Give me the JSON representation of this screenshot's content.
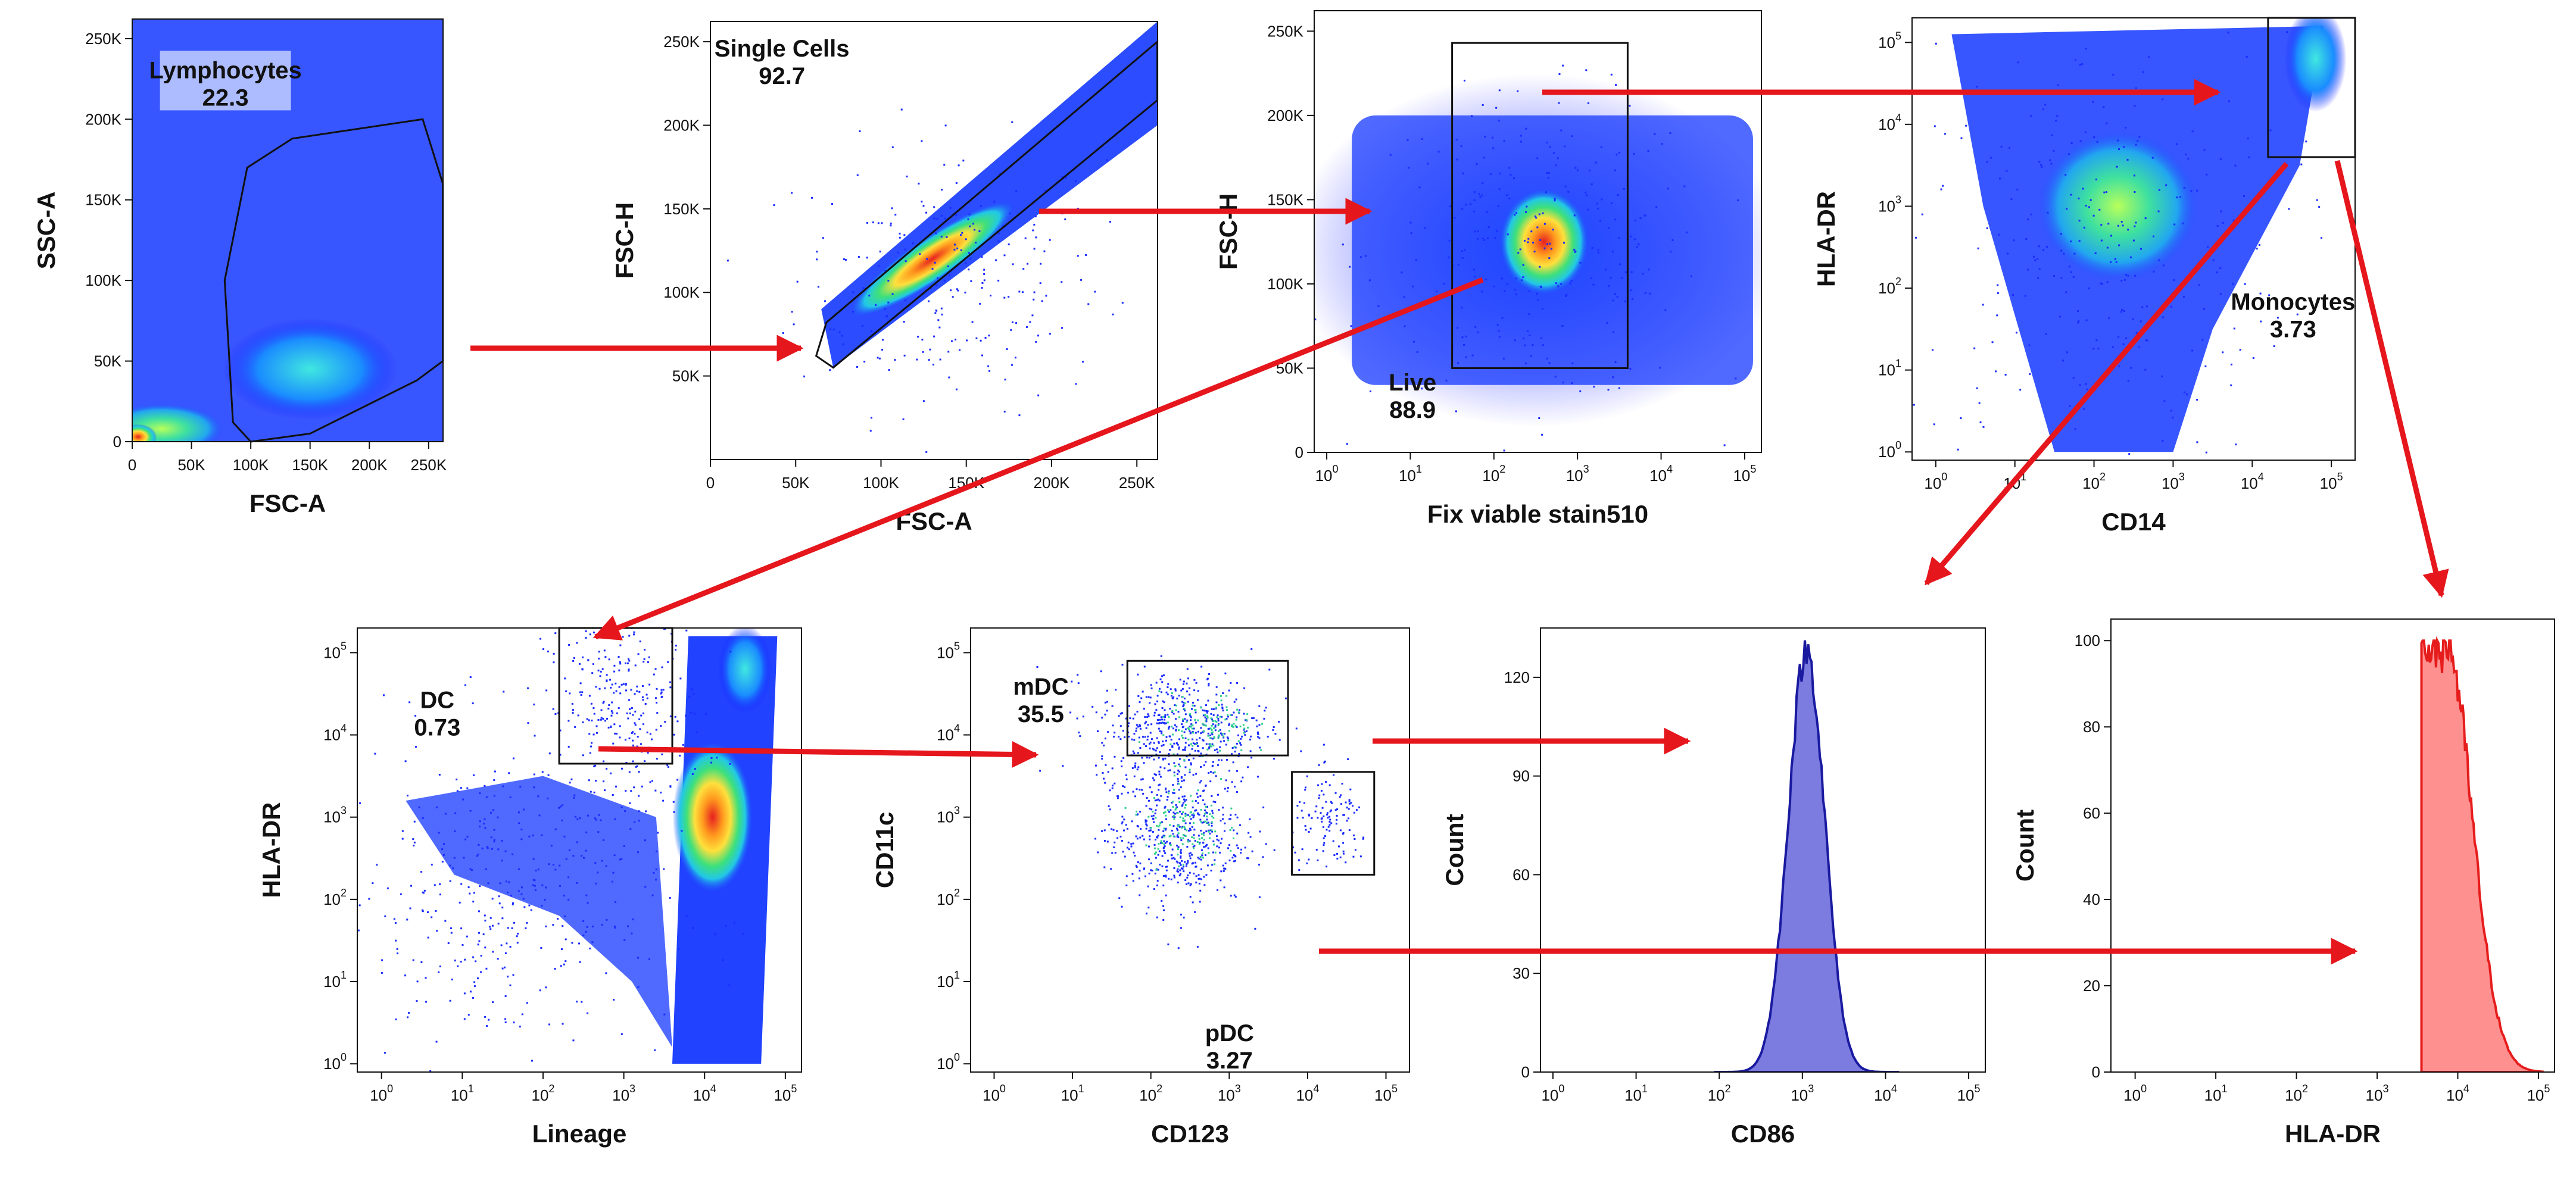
{
  "figure_title": "",
  "colors": {
    "arrow": "#e5161c",
    "frame": "#111111",
    "density_low": "#1414ff",
    "density_mid": "#22c8e6",
    "density_high": "#ffd23c",
    "density_peak": "#e62020",
    "cd86_fill": "#7b7be0",
    "cd86_line": "#1a1aa0",
    "hladr_fill": "#ff9090",
    "hladr_line": "#e61c1c"
  },
  "chart_data": [
    {
      "id": "p1",
      "type": "scatter",
      "title": "",
      "xlabel": "FSC-A",
      "ylabel": "SSC-A",
      "scale": "linear",
      "xlim": [
        0,
        262144
      ],
      "ylim": [
        0,
        262144
      ],
      "xticks": [
        {
          "v": 0,
          "t": "0"
        },
        {
          "v": 50000,
          "t": "50K"
        },
        {
          "v": 100000,
          "t": "100K"
        },
        {
          "v": 150000,
          "t": "150K"
        },
        {
          "v": 200000,
          "t": "200K"
        },
        {
          "v": 250000,
          "t": "250K"
        }
      ],
      "yticks": [
        {
          "v": 0,
          "t": "0"
        },
        {
          "v": 50000,
          "t": "50K"
        },
        {
          "v": 100000,
          "t": "100K"
        },
        {
          "v": 150000,
          "t": "150K"
        },
        {
          "v": 200000,
          "t": "200K"
        },
        {
          "v": 250000,
          "t": "250K"
        }
      ],
      "gates": [
        {
          "name": "Lymphocytes",
          "value": "22.3",
          "shape": "polygon",
          "points": [
            [
              85000,
              12000
            ],
            [
              78000,
              100000
            ],
            [
              97000,
              170000
            ],
            [
              135000,
              188000
            ],
            [
              245000,
              200000
            ],
            [
              262000,
              160000
            ],
            [
              262000,
              50000
            ],
            [
              240000,
              38000
            ],
            [
              150000,
              5000
            ],
            [
              100000,
              0
            ]
          ]
        }
      ]
    },
    {
      "id": "p2",
      "type": "scatter",
      "title": "",
      "xlabel": "FSC-A",
      "ylabel": "FSC-H",
      "scale": "linear",
      "xlim": [
        0,
        262144
      ],
      "ylim": [
        0,
        262144
      ],
      "xticks": [
        {
          "v": 0,
          "t": "0"
        },
        {
          "v": 50000,
          "t": "50K"
        },
        {
          "v": 100000,
          "t": "100K"
        },
        {
          "v": 150000,
          "t": "150K"
        },
        {
          "v": 200000,
          "t": "200K"
        },
        {
          "v": 250000,
          "t": "250K"
        }
      ],
      "yticks": [
        {
          "v": 50000,
          "t": "50K"
        },
        {
          "v": 100000,
          "t": "100K"
        },
        {
          "v": 150000,
          "t": "150K"
        },
        {
          "v": 200000,
          "t": "200K"
        },
        {
          "v": 250000,
          "t": "250K"
        }
      ],
      "gates": [
        {
          "name": "Single Cells",
          "value": "92.7",
          "shape": "polygon",
          "points": [
            [
              62000,
              62000
            ],
            [
              68000,
              82000
            ],
            [
              262000,
              250000
            ],
            [
              262000,
              215000
            ],
            [
              72000,
              55000
            ]
          ]
        }
      ]
    },
    {
      "id": "p3",
      "type": "scatter",
      "title": "",
      "xlabel": "Fix viable stain510",
      "ylabel": "FSC-H",
      "scale": "xlog",
      "xlim": [
        -0.15,
        5.2
      ],
      "ylim": [
        0,
        262144
      ],
      "xticks": [
        {
          "v": 0,
          "t": "10",
          "e": "0"
        },
        {
          "v": 1,
          "t": "10",
          "e": "1"
        },
        {
          "v": 2,
          "t": "10",
          "e": "2"
        },
        {
          "v": 3,
          "t": "10",
          "e": "3"
        },
        {
          "v": 4,
          "t": "10",
          "e": "4"
        },
        {
          "v": 5,
          "t": "10",
          "e": "5"
        }
      ],
      "yticks": [
        {
          "v": 0,
          "t": "0"
        },
        {
          "v": 50000,
          "t": "50K"
        },
        {
          "v": 100000,
          "t": "100K"
        },
        {
          "v": 150000,
          "t": "150K"
        },
        {
          "v": 200000,
          "t": "200K"
        },
        {
          "v": 250000,
          "t": "250K"
        }
      ],
      "gates": [
        {
          "name": "Live",
          "value": "88.9",
          "shape": "rect",
          "x": [
            1.5,
            3.6
          ],
          "y": [
            50000,
            243000
          ]
        }
      ]
    },
    {
      "id": "p4",
      "type": "scatter",
      "title": "",
      "xlabel": "CD14",
      "ylabel": "HLA-DR",
      "scale": "loglog",
      "xlim": [
        -0.3,
        5.3
      ],
      "ylim": [
        -0.1,
        5.3
      ],
      "xticks": [
        {
          "v": 0,
          "t": "10",
          "e": "0"
        },
        {
          "v": 1,
          "t": "10",
          "e": "1"
        },
        {
          "v": 2,
          "t": "10",
          "e": "2"
        },
        {
          "v": 3,
          "t": "10",
          "e": "3"
        },
        {
          "v": 4,
          "t": "10",
          "e": "4"
        },
        {
          "v": 5,
          "t": "10",
          "e": "5"
        }
      ],
      "yticks": [
        {
          "v": 0,
          "t": "10",
          "e": "0"
        },
        {
          "v": 1,
          "t": "10",
          "e": "1"
        },
        {
          "v": 2,
          "t": "10",
          "e": "2"
        },
        {
          "v": 3,
          "t": "10",
          "e": "3"
        },
        {
          "v": 4,
          "t": "10",
          "e": "4"
        },
        {
          "v": 5,
          "t": "10",
          "e": "5"
        }
      ],
      "gates": [
        {
          "name": "Monocytes",
          "value": "3.73",
          "shape": "rect",
          "x": [
            4.2,
            5.3
          ],
          "y": [
            3.6,
            5.3
          ]
        }
      ]
    },
    {
      "id": "p5",
      "type": "scatter",
      "title": "",
      "xlabel": "Lineage",
      "ylabel": "HLA-DR",
      "scale": "loglog",
      "xlim": [
        -0.3,
        5.2
      ],
      "ylim": [
        -0.1,
        5.3
      ],
      "xticks": [
        {
          "v": 0,
          "t": "10",
          "e": "0"
        },
        {
          "v": 1,
          "t": "10",
          "e": "1"
        },
        {
          "v": 2,
          "t": "10",
          "e": "2"
        },
        {
          "v": 3,
          "t": "10",
          "e": "3"
        },
        {
          "v": 4,
          "t": "10",
          "e": "4"
        },
        {
          "v": 5,
          "t": "10",
          "e": "5"
        }
      ],
      "yticks": [
        {
          "v": 0,
          "t": "10",
          "e": "0"
        },
        {
          "v": 1,
          "t": "10",
          "e": "1"
        },
        {
          "v": 2,
          "t": "10",
          "e": "2"
        },
        {
          "v": 3,
          "t": "10",
          "e": "3"
        },
        {
          "v": 4,
          "t": "10",
          "e": "4"
        },
        {
          "v": 5,
          "t": "10",
          "e": "5"
        }
      ],
      "gates": [
        {
          "name": "DC",
          "value": "0.73",
          "shape": "rect",
          "x": [
            2.2,
            3.6
          ],
          "y": [
            3.65,
            5.3
          ]
        }
      ]
    },
    {
      "id": "p6",
      "type": "scatter",
      "title": "",
      "xlabel": "CD123",
      "ylabel": "CD11c",
      "scale": "loglog",
      "xlim": [
        -0.3,
        5.3
      ],
      "ylim": [
        -0.1,
        5.3
      ],
      "xticks": [
        {
          "v": 0,
          "t": "10",
          "e": "0"
        },
        {
          "v": 1,
          "t": "10",
          "e": "1"
        },
        {
          "v": 2,
          "t": "10",
          "e": "2"
        },
        {
          "v": 3,
          "t": "10",
          "e": "3"
        },
        {
          "v": 4,
          "t": "10",
          "e": "4"
        },
        {
          "v": 5,
          "t": "10",
          "e": "5"
        }
      ],
      "yticks": [
        {
          "v": 0,
          "t": "10",
          "e": "0"
        },
        {
          "v": 1,
          "t": "10",
          "e": "1"
        },
        {
          "v": 2,
          "t": "10",
          "e": "2"
        },
        {
          "v": 3,
          "t": "10",
          "e": "3"
        },
        {
          "v": 4,
          "t": "10",
          "e": "4"
        },
        {
          "v": 5,
          "t": "10",
          "e": "5"
        }
      ],
      "gates": [
        {
          "name": "mDC",
          "value": "35.5",
          "shape": "rect",
          "x": [
            1.7,
            3.75
          ],
          "y": [
            3.75,
            4.9
          ]
        },
        {
          "name": "pDC",
          "value": "3.27",
          "shape": "rect",
          "x": [
            3.8,
            4.85
          ],
          "y": [
            2.3,
            3.55
          ]
        }
      ]
    },
    {
      "id": "p7",
      "type": "histogram",
      "title": "",
      "xlabel": "CD86",
      "ylabel": "Count",
      "scale": "xlog",
      "xlim": [
        -0.15,
        5.2
      ],
      "ylim": [
        0,
        135
      ],
      "xticks": [
        {
          "v": 0,
          "t": "10",
          "e": "0"
        },
        {
          "v": 1,
          "t": "10",
          "e": "1"
        },
        {
          "v": 2,
          "t": "10",
          "e": "2"
        },
        {
          "v": 3,
          "t": "10",
          "e": "3"
        },
        {
          "v": 4,
          "t": "10",
          "e": "4"
        },
        {
          "v": 5,
          "t": "10",
          "e": "5"
        }
      ],
      "yticks": [
        {
          "v": 0,
          "t": "0"
        },
        {
          "v": 30,
          "t": "30"
        },
        {
          "v": 60,
          "t": "60"
        },
        {
          "v": 90,
          "t": "90"
        },
        {
          "v": 120,
          "t": "120"
        }
      ],
      "peak_log10": 3.05,
      "peak_count": 128,
      "width_log10": 0.22,
      "start_log10": 1.95,
      "end_log10": 4.15
    },
    {
      "id": "p8",
      "type": "histogram",
      "title": "",
      "xlabel": "HLA-DR",
      "ylabel": "Count",
      "scale": "xlog",
      "xlim": [
        -0.3,
        5.2
      ],
      "ylim": [
        0,
        105
      ],
      "xticks": [
        {
          "v": 0,
          "t": "10",
          "e": "0"
        },
        {
          "v": 1,
          "t": "10",
          "e": "1"
        },
        {
          "v": 2,
          "t": "10",
          "e": "2"
        },
        {
          "v": 3,
          "t": "10",
          "e": "3"
        },
        {
          "v": 4,
          "t": "10",
          "e": "4"
        },
        {
          "v": 5,
          "t": "10",
          "e": "5"
        }
      ],
      "yticks": [
        {
          "v": 0,
          "t": "0"
        },
        {
          "v": 20,
          "t": "20"
        },
        {
          "v": 40,
          "t": "40"
        },
        {
          "v": 60,
          "t": "60"
        },
        {
          "v": 80,
          "t": "80"
        },
        {
          "v": 100,
          "t": "100"
        }
      ],
      "peak_log10": 3.85,
      "peak_count": 100,
      "gate_start_log10": 3.55,
      "end_log10": 5.05
    }
  ]
}
